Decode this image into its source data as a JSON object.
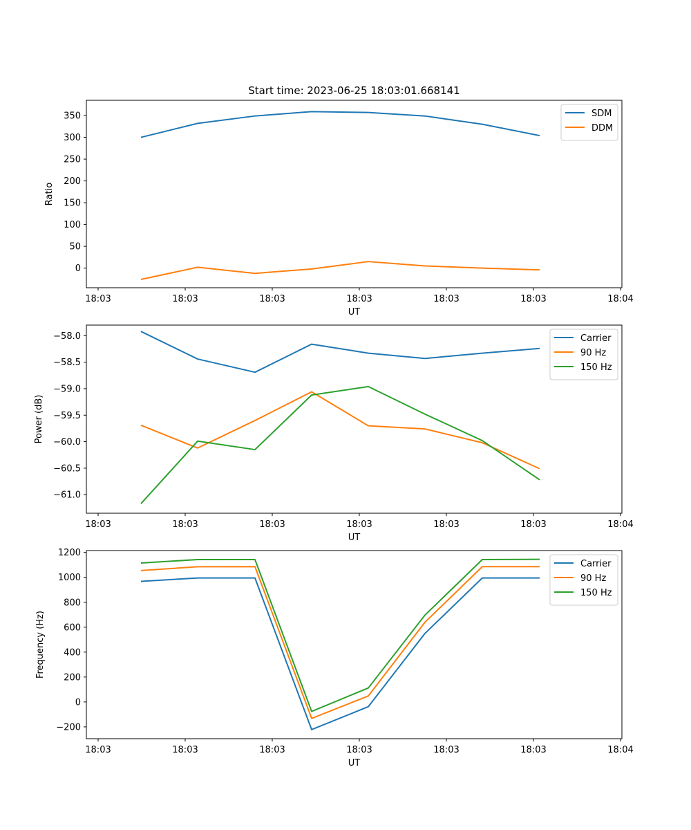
{
  "figure": {
    "title": "Start time: 2023-06-25 18:03:01.668141"
  },
  "chart_data": [
    {
      "type": "line",
      "xlabel": "UT",
      "ylabel": "Ratio",
      "x_tick_labels": [
        "18:03",
        "18:03",
        "18:03",
        "18:03",
        "18:03",
        "18:03",
        "18:04"
      ],
      "ylim": [
        -45,
        385
      ],
      "yticks": [
        0,
        50,
        100,
        150,
        200,
        250,
        300,
        350
      ],
      "legend_position": "upper right",
      "series": [
        {
          "name": "SDM",
          "color": "#1f77b4",
          "values": [
            300,
            332,
            349,
            359,
            357,
            349,
            330,
            304
          ]
        },
        {
          "name": "DDM",
          "color": "#ff7f0e",
          "values": [
            -26,
            2,
            -12,
            -2,
            15,
            5,
            0,
            -4
          ]
        }
      ]
    },
    {
      "type": "line",
      "xlabel": "UT",
      "ylabel": "Power (dB)",
      "x_tick_labels": [
        "18:03",
        "18:03",
        "18:03",
        "18:03",
        "18:03",
        "18:03",
        "18:04"
      ],
      "ylim": [
        -61.35,
        -57.8
      ],
      "yticks": [
        -58.0,
        -58.5,
        -59.0,
        -59.5,
        -60.0,
        -60.5,
        -61.0
      ],
      "legend_position": "upper right",
      "series": [
        {
          "name": "Carrier",
          "color": "#1f77b4",
          "values": [
            -57.92,
            -58.44,
            -58.69,
            -58.16,
            -58.33,
            -58.43,
            -58.33,
            -58.24
          ]
        },
        {
          "name": "90 Hz",
          "color": "#ff7f0e",
          "values": [
            -59.69,
            -60.12,
            -59.6,
            -59.06,
            -59.7,
            -59.76,
            -60.02,
            -60.51
          ]
        },
        {
          "name": "150 Hz",
          "color": "#2ca02c",
          "values": [
            -61.17,
            -59.99,
            -60.15,
            -59.12,
            -58.96,
            -59.48,
            -59.98,
            -60.72
          ]
        }
      ]
    },
    {
      "type": "line",
      "xlabel": "UT",
      "ylabel": "Frequency (Hz)",
      "x_tick_labels": [
        "18:03",
        "18:03",
        "18:03",
        "18:03",
        "18:03",
        "18:03",
        "18:04"
      ],
      "ylim": [
        -295,
        1215
      ],
      "yticks": [
        -200,
        0,
        200,
        400,
        600,
        800,
        1000,
        1200
      ],
      "legend_position": "upper right",
      "series": [
        {
          "name": "Carrier",
          "color": "#1f77b4",
          "values": [
            968,
            995,
            995,
            -222,
            -38,
            550,
            995,
            995
          ]
        },
        {
          "name": "90 Hz",
          "color": "#ff7f0e",
          "values": [
            1055,
            1085,
            1086,
            -132,
            48,
            640,
            1086,
            1086
          ]
        },
        {
          "name": "150 Hz",
          "color": "#2ca02c",
          "values": [
            1115,
            1143,
            1143,
            -76,
            112,
            697,
            1143,
            1145
          ]
        }
      ]
    }
  ]
}
